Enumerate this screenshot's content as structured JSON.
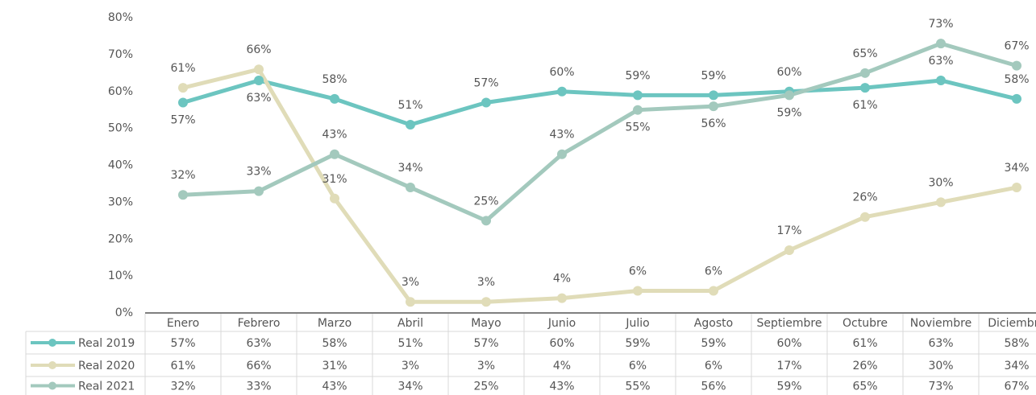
{
  "chart_data": {
    "type": "line",
    "categories": [
      "Enero",
      "Febrero",
      "Marzo",
      "Abril",
      "Mayo",
      "Junio",
      "Julio",
      "Agosto",
      "Septiembre",
      "Octubre",
      "Noviembre",
      "Diciembre"
    ],
    "series": [
      {
        "name": "Real 2019",
        "color": "#6cc5c0",
        "values": [
          57,
          63,
          58,
          51,
          57,
          60,
          59,
          59,
          60,
          61,
          63,
          58
        ],
        "value_labels": [
          "57%",
          "63%",
          "58%",
          "51%",
          "57%",
          "60%",
          "59%",
          "59%",
          "60%",
          "61%",
          "63%",
          "58%"
        ]
      },
      {
        "name": "Real 2020",
        "color": "#e0dcb8",
        "values": [
          61,
          66,
          31,
          3,
          3,
          4,
          6,
          6,
          17,
          26,
          30,
          34
        ],
        "value_labels": [
          "61%",
          "66%",
          "31%",
          "3%",
          "3%",
          "4%",
          "6%",
          "6%",
          "17%",
          "26%",
          "30%",
          "34%"
        ]
      },
      {
        "name": "Real 2021",
        "color": "#a3c9bd",
        "values": [
          32,
          33,
          43,
          34,
          25,
          43,
          55,
          56,
          59,
          65,
          73,
          67
        ],
        "value_labels": [
          "32%",
          "33%",
          "43%",
          "34%",
          "25%",
          "43%",
          "55%",
          "56%",
          "59%",
          "65%",
          "73%",
          "67%"
        ]
      }
    ],
    "ylim": [
      0,
      80
    ],
    "yticks": [
      {
        "value": 0,
        "label": "0%"
      },
      {
        "value": 10,
        "label": "10%"
      },
      {
        "value": 20,
        "label": "20%"
      },
      {
        "value": 30,
        "label": "30%"
      },
      {
        "value": 40,
        "label": "40%"
      },
      {
        "value": 50,
        "label": "50%"
      },
      {
        "value": 60,
        "label": "60%"
      },
      {
        "value": 70,
        "label": "70%"
      },
      {
        "value": 80,
        "label": "80%"
      }
    ],
    "grid": false
  }
}
